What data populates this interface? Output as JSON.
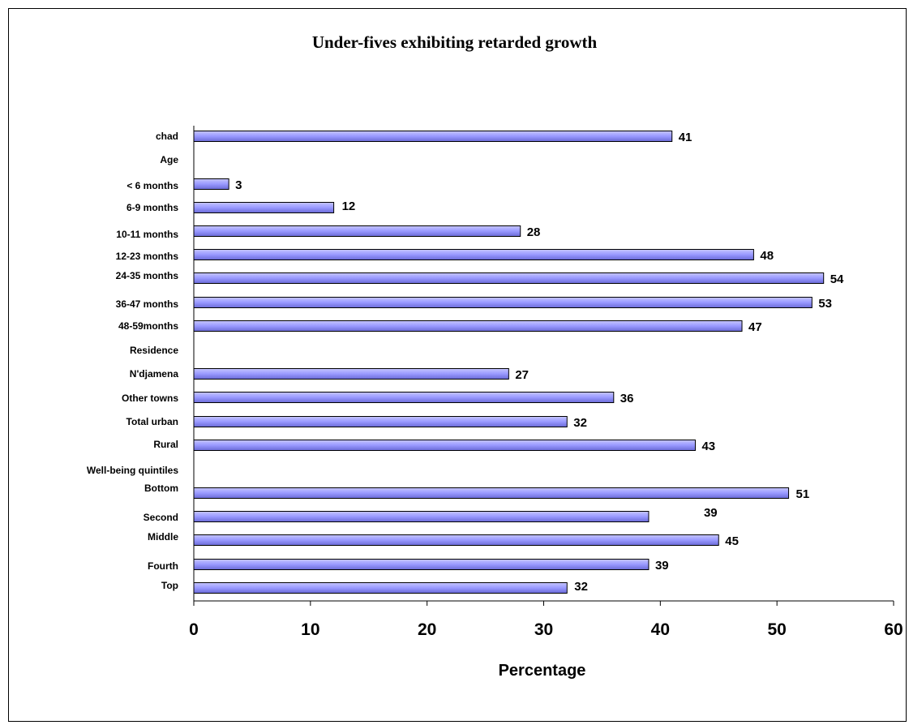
{
  "chart_data": {
    "type": "bar",
    "orientation": "horizontal",
    "title": "Under-fives exhibiting retarded growth",
    "xlabel": "Percentage",
    "ylabel": "",
    "xlim": [
      0,
      60
    ],
    "xticks": [
      0,
      10,
      20,
      30,
      40,
      50,
      60
    ],
    "grid": false,
    "legend": "none",
    "bar_color": "#9999ff",
    "categories": [
      "chad",
      "Age",
      "< 6 months",
      "6-9 months",
      "10-11 months",
      "12-23 months",
      "24-35 months",
      "36-47 months",
      "48-59months",
      "Residence",
      "N'djamena",
      "Other towns",
      "Total urban",
      "Rural",
      "Well-being quintiles",
      "Bottom",
      "Second",
      "Middle",
      "Fourth",
      "Top"
    ],
    "values": [
      41,
      null,
      3,
      12,
      28,
      48,
      54,
      53,
      47,
      null,
      27,
      36,
      32,
      43,
      null,
      51,
      39,
      45,
      39,
      32
    ]
  }
}
